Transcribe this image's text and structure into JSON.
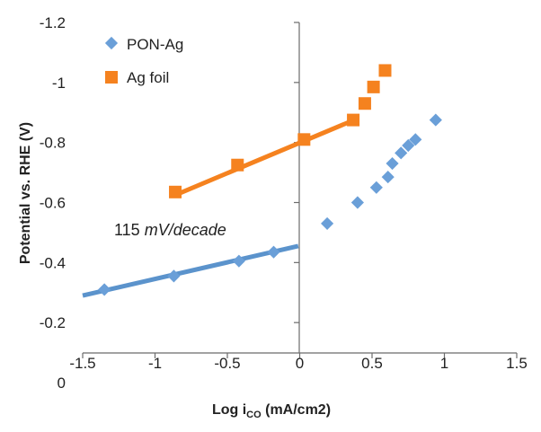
{
  "chart_data": {
    "type": "scatter",
    "xlabel": "Log i",
    "xlabel_sub": "CO",
    "xlabel_suffix": " (mA/cm2)",
    "ylabel": "Potential vs. RHE (V)",
    "xlim": [
      -1.5,
      1.5
    ],
    "ylim": [
      0,
      -1.2
    ],
    "x_ticks": [
      -1.5,
      -1,
      -0.5,
      0,
      0.5,
      1,
      1.5
    ],
    "x_tick_labels": [
      "-1.5",
      "-1",
      "-0.5",
      "0",
      "0.5",
      "1",
      "1.5"
    ],
    "y_ticks": [
      -0.2,
      -0.4,
      -0.6,
      -0.8,
      -1,
      -1.2
    ],
    "y_tick_labels": [
      "-0.2",
      "-0.4",
      "-0.6",
      "-0.8",
      "-1",
      "-1.2"
    ],
    "y_zero_label": "0",
    "legend_position": "top-left",
    "annotation_value": "115 ",
    "annotation_unit": "mV/decade",
    "series": [
      {
        "name": "PON-Ag",
        "marker": "diamond",
        "color": "#6a9fd8",
        "x": [
          -1.35,
          -0.87,
          -0.42,
          -0.18,
          0.19,
          0.4,
          0.53,
          0.61,
          0.64,
          0.7,
          0.75,
          0.8,
          0.94
        ],
        "y": [
          -0.31,
          -0.355,
          -0.405,
          -0.435,
          -0.53,
          -0.6,
          -0.65,
          -0.685,
          -0.73,
          -0.765,
          -0.79,
          -0.81,
          -0.875
        ]
      },
      {
        "name": "Ag foil",
        "marker": "square",
        "color": "#f5821f",
        "x": [
          -0.86,
          -0.43,
          0.03,
          0.37,
          0.45,
          0.51,
          0.59
        ],
        "y": [
          -0.635,
          -0.725,
          -0.81,
          -0.875,
          -0.93,
          -0.985,
          -1.04
        ]
      }
    ],
    "fit_lines": [
      {
        "series": "PON-Ag",
        "color": "#5b93cc",
        "x": [
          -1.5,
          -0.01
        ],
        "y": [
          -0.29,
          -0.455
        ]
      },
      {
        "series": "Ag foil",
        "color": "#f5821f",
        "x": [
          -0.86,
          0.4
        ],
        "y": [
          -0.625,
          -0.88
        ]
      }
    ]
  }
}
